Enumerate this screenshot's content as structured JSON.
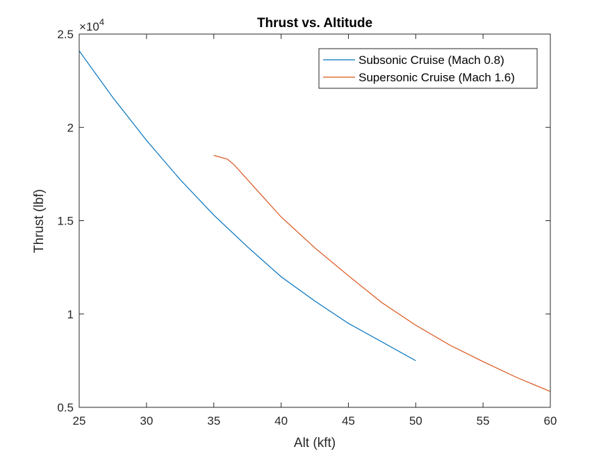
{
  "chart_data": {
    "type": "line",
    "title": "Thrust vs. Altitude",
    "xlabel": "Alt (kft)",
    "ylabel": "Thrust (lbf)",
    "xlim": [
      25,
      60
    ],
    "ylim": [
      5000,
      25000
    ],
    "y_exponent_label": "×10",
    "y_exponent_power": "4",
    "x_ticks": [
      25,
      30,
      35,
      40,
      45,
      50,
      55,
      60
    ],
    "x_tick_labels": [
      "25",
      "30",
      "35",
      "40",
      "45",
      "50",
      "55",
      "60"
    ],
    "y_ticks": [
      5000,
      10000,
      15000,
      20000,
      25000
    ],
    "y_tick_labels": [
      "0.5",
      "1",
      "1.5",
      "2",
      "2.5"
    ],
    "grid": false,
    "legend_placement": "top-right",
    "series": [
      {
        "name": "Subsonic Cruise (Mach 0.8)",
        "color": "#0072BD",
        "x": [
          25,
          27.5,
          30,
          32.5,
          35,
          37.5,
          40,
          42.5,
          45,
          47.5,
          50
        ],
        "y": [
          24100,
          21600,
          19300,
          17200,
          15300,
          13600,
          12000,
          10700,
          9500,
          8500,
          7500
        ]
      },
      {
        "name": "Supersonic Cruise (Mach 1.6)",
        "color": "#D95319",
        "x": [
          35,
          36,
          36.5,
          37.5,
          40,
          42.5,
          45,
          47.5,
          50,
          52.5,
          55,
          57.5,
          60
        ],
        "y": [
          18500,
          18300,
          18000,
          17200,
          15200,
          13550,
          12050,
          10600,
          9400,
          8350,
          7450,
          6600,
          5850
        ]
      }
    ]
  }
}
